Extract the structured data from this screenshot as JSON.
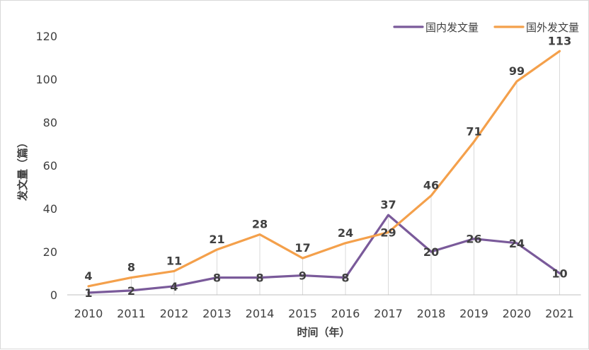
{
  "chart_data": {
    "type": "line",
    "categories": [
      "2010",
      "2011",
      "2012",
      "2013",
      "2014",
      "2015",
      "2016",
      "2017",
      "2018",
      "2019",
      "2020",
      "2021"
    ],
    "series": [
      {
        "name": "国内发文量",
        "color": "#7a5a9a",
        "values": [
          1,
          2,
          4,
          8,
          8,
          9,
          8,
          37,
          20,
          26,
          24,
          10
        ]
      },
      {
        "name": "国外发文量",
        "color": "#f4a04b",
        "values": [
          4,
          8,
          11,
          21,
          28,
          17,
          24,
          29,
          46,
          71,
          99,
          113
        ]
      }
    ],
    "xlabel": "时间（年）",
    "ylabel": "发文量（篇）",
    "ylim": [
      0,
      120
    ],
    "yticks": [
      0,
      20,
      40,
      60,
      80,
      100,
      120
    ],
    "legend_position": "top-right",
    "grid": "vertical drop lines from orange series",
    "drop_line_color": "#d9d9d9"
  }
}
